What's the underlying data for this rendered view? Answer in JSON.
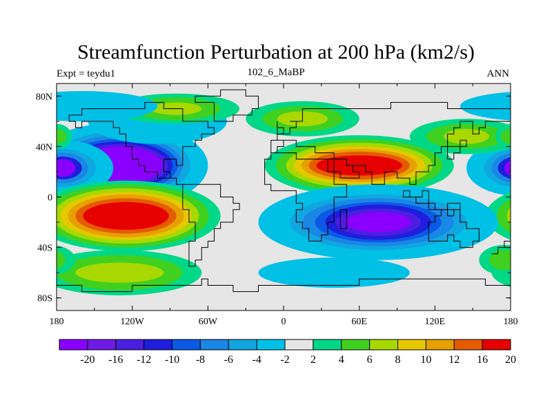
{
  "title": "Streamfunction Perturbation at 200 hPa (km2/s)",
  "subtitle_left": "Expt = teydu1",
  "subtitle_center": "102_6_MaBP",
  "subtitle_right": "ANN",
  "map": {
    "background_color": "#e6e6e6",
    "lat_ticks": [
      "80N",
      "40N",
      "0",
      "40S",
      "80S"
    ],
    "lon_ticks": [
      "180",
      "120W",
      "60W",
      "0",
      "60E",
      "120E",
      "180"
    ],
    "lat_tick_values": [
      80,
      40,
      0,
      -40,
      -80
    ],
    "lon_tick_values": [
      -180,
      -120,
      -60,
      0,
      60,
      120,
      180
    ],
    "lon_range": [
      -180,
      180
    ],
    "lat_range": [
      -90,
      90
    ]
  },
  "colorbar": {
    "labels": [
      "-20",
      "-16",
      "-12",
      "-10",
      "-8",
      "-6",
      "-4",
      "-2",
      "2",
      "4",
      "6",
      "8",
      "10",
      "12",
      "16",
      "20"
    ],
    "colors": [
      "#8a00ff",
      "#6f1ae6",
      "#4b1ee0",
      "#1e1edc",
      "#0a5ae6",
      "#1a86e6",
      "#10a6e0",
      "#00c0e6",
      "#e6e6e6",
      "#00d888",
      "#40d020",
      "#a8d800",
      "#e6c800",
      "#e6a000",
      "#e65a00",
      "#e60000"
    ]
  },
  "chart_data": {
    "type": "heatmap",
    "title": "Streamfunction Perturbation at 200 hPa (km2/s)",
    "units": "km2/s",
    "level": "200 hPa",
    "levels": [
      -20,
      -16,
      -12,
      -10,
      -8,
      -6,
      -4,
      -2,
      2,
      4,
      6,
      8,
      10,
      12,
      16,
      20
    ],
    "features": [
      {
        "lon": -130,
        "lat": 25,
        "value": -22
      },
      {
        "lon": -175,
        "lat": 25,
        "value": -20
      },
      {
        "lon": 180,
        "lat": 25,
        "value": -20
      },
      {
        "lon": -130,
        "lat": -15,
        "value": 17
      },
      {
        "lon": 60,
        "lat": 25,
        "value": 17
      },
      {
        "lon": 80,
        "lat": -20,
        "value": -18
      },
      {
        "lon": -130,
        "lat": -60,
        "value": 6
      },
      {
        "lon": -90,
        "lat": 65,
        "value": 5
      },
      {
        "lon": 20,
        "lat": 60,
        "value": 5
      },
      {
        "lon": 140,
        "lat": 50,
        "value": 5
      }
    ]
  }
}
